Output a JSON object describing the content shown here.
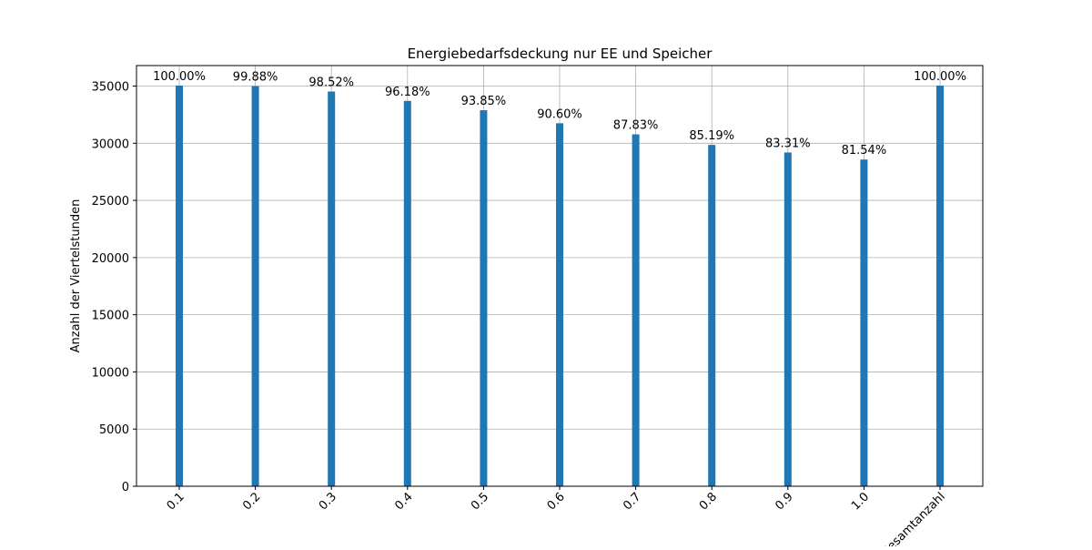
{
  "chart_data": {
    "type": "bar",
    "title": "Energiebedarfsdeckung nur EE und Speicher",
    "xlabel": "",
    "ylabel": "Anzahl der Viertelstunden",
    "categories": [
      "0.1",
      "0.2",
      "0.3",
      "0.4",
      "0.5",
      "0.6",
      "0.7",
      "0.8",
      "0.9",
      "1.0",
      "Gesamtanzahl"
    ],
    "values": [
      35040,
      34998,
      34522,
      33701,
      32885,
      31746,
      30776,
      29851,
      29192,
      28572,
      35040
    ],
    "data_labels": [
      "100.00%",
      "99.88%",
      "98.52%",
      "96.18%",
      "93.85%",
      "90.60%",
      "87.83%",
      "85.19%",
      "83.31%",
      "81.54%",
      "100.00%"
    ],
    "yticks": [
      0,
      5000,
      10000,
      15000,
      20000,
      25000,
      30000,
      35000
    ],
    "ylim": [
      0,
      36792
    ],
    "grid": true,
    "bar_color": "#1f77b4"
  }
}
